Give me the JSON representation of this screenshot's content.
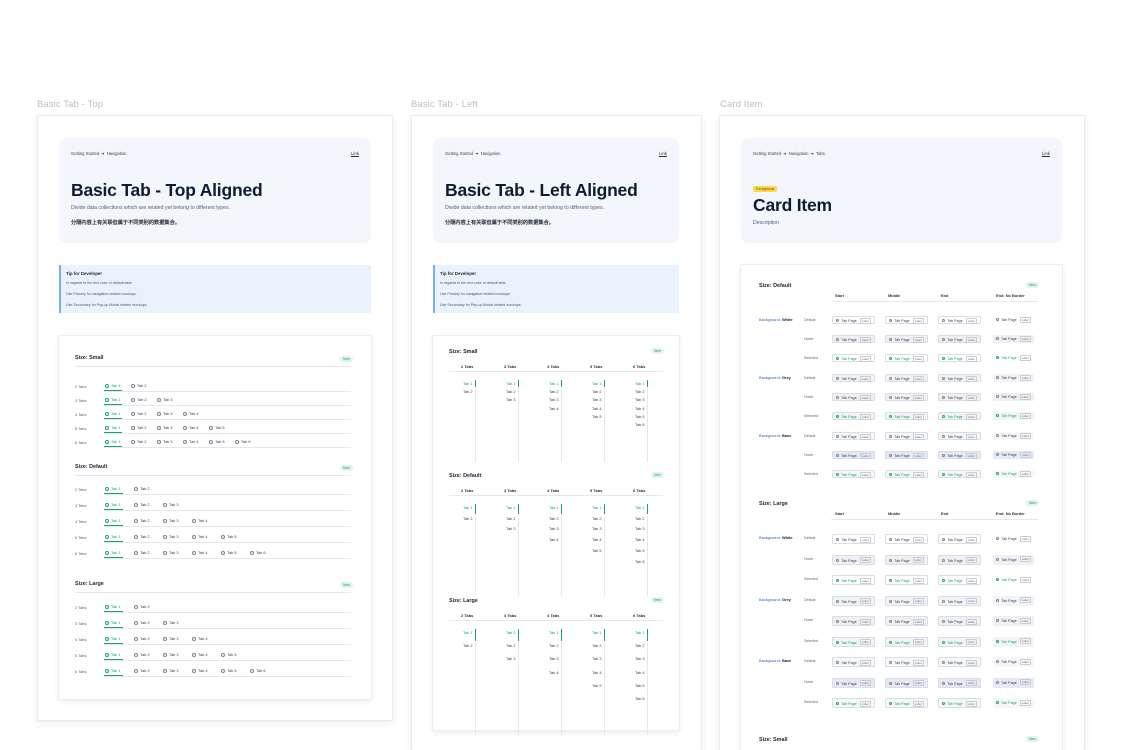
{
  "frames": {
    "top": {
      "label": "Basic Tab - Top"
    },
    "left": {
      "label": "Basic Tab - Left"
    },
    "card": {
      "label": "Card Item"
    }
  },
  "top_hero": {
    "crumb_1": "Getting Started",
    "crumb_2": "Navigation",
    "link": "Link",
    "title": "Basic Tab - Top Aligned",
    "desc": "Divide data collections which are related yet belong to different types.",
    "cn": "分隔内容上有关联但属于不同类别的数据集合。"
  },
  "left_hero": {
    "crumb_1": "Getting Started",
    "crumb_2": "Navigation",
    "link": "Link",
    "title": "Basic Tab - Left Aligned",
    "desc": "Divide data collections which are related yet belong to different types.",
    "cn": "分隔内容上有关联但属于不同类别的数据集合。"
  },
  "card_hero": {
    "crumb_1": "Getting Started",
    "crumb_2": "Navigation",
    "crumb_3": "Tabs",
    "link": "Link",
    "badge": "For Approval",
    "title": "Card Item",
    "desc": "Description"
  },
  "tip": {
    "title": "Tip for Developer",
    "line_1": "In regards to the text color of default tabs:",
    "line_2": "Use Primary for navigation related mockups.",
    "line_3": "Use Secondary for Pop-up Modal related mockups."
  },
  "top_sections": [
    {
      "title": "Size: Small",
      "badge": "New"
    },
    {
      "title": "Size: Default",
      "badge": "New"
    },
    {
      "title": "Size: Large",
      "badge": "New"
    }
  ],
  "row_labels": [
    "2 Tabs",
    "3 Tabs",
    "4 Tabs",
    "5 Tabs",
    "6 Tabs"
  ],
  "tab_names": [
    "Tab 1",
    "Tab 2",
    "Tab 3",
    "Tab 4",
    "Tab 5",
    "Tab 6"
  ],
  "left_sections": [
    {
      "title": "Size: Small",
      "badge": "New"
    },
    {
      "title": "Size: Default",
      "badge": "New"
    },
    {
      "title": "Size: Large",
      "badge": "New"
    }
  ],
  "left_col_heads": [
    "2 Tabs",
    "3 Tabs",
    "4 Tabs",
    "5 Tabs",
    "6 Tabs"
  ],
  "card": {
    "col_heads": [
      "Start",
      "Middle",
      "End",
      "End: No Border"
    ],
    "bg_prefix": "Background:",
    "bgs": [
      "White",
      "Grey",
      "Base"
    ],
    "states": [
      "Default",
      "Hover",
      "Selected"
    ],
    "chip_text": "Tab Page",
    "chip_label": "Label",
    "sections": [
      {
        "title": "Size: Default",
        "badge": "New"
      },
      {
        "title": "Size: Large",
        "badge": "New"
      },
      {
        "title": "Size: Small",
        "badge": "New"
      }
    ]
  }
}
